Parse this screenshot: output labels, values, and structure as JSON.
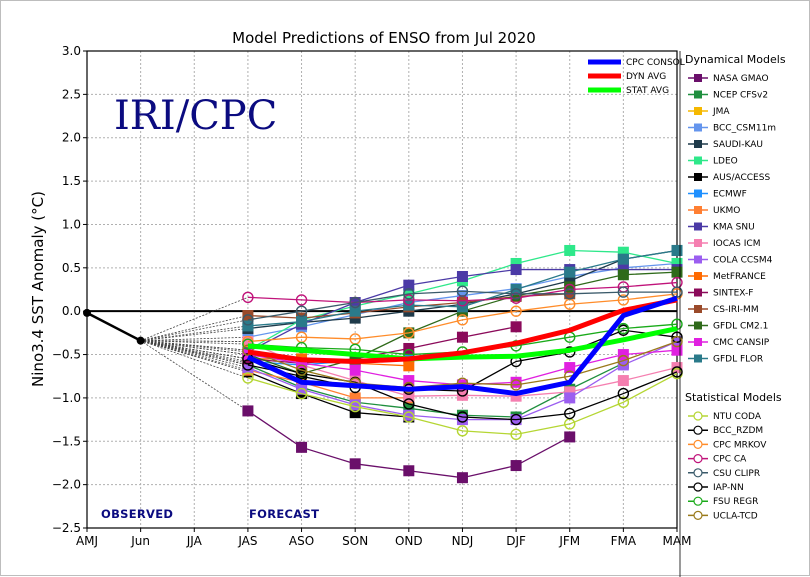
{
  "chart_data": {
    "type": "line",
    "title": "Model Predictions of ENSO from Jul 2020",
    "xlabel": "",
    "ylabel": "Nino3.4 SST Anomaly (°C)",
    "ylim": [
      -2.5,
      3.0
    ],
    "yticks": [
      "3.0",
      "2.5",
      "2.0",
      "1.5",
      "1.0",
      "0.5",
      "0.0",
      "−0.5",
      "−1.0",
      "−1.5",
      "−2.0",
      "−2.5"
    ],
    "ytick_values": [
      3.0,
      2.5,
      2.0,
      1.5,
      1.0,
      0.5,
      0.0,
      -0.5,
      -1.0,
      -1.5,
      -2.0,
      -2.5
    ],
    "categories": [
      "AMJ",
      "Jun",
      "JJA",
      "JAS",
      "ASO",
      "SON",
      "OND",
      "NDJ",
      "DJF",
      "JFM",
      "FMA",
      "MAM"
    ],
    "grid": true,
    "watermark": "IRI/CPC",
    "annotations": {
      "observed": "OBSERVED",
      "forecast": "FORECAST"
    },
    "observed": {
      "name": "Observed",
      "color": "#000000",
      "start_index": 0,
      "values": [
        -0.02,
        -0.34
      ]
    },
    "forecast_start_index": 3,
    "consensus": [
      {
        "name": "CPC CONSOL",
        "color": "#0000ff",
        "values": [
          -0.53,
          -0.82,
          -0.86,
          -0.9,
          -0.87,
          -0.95,
          -0.82,
          -0.05,
          0.15
        ]
      },
      {
        "name": "DYN AVG",
        "color": "#ff0000",
        "values": [
          -0.47,
          -0.56,
          -0.58,
          -0.55,
          -0.48,
          -0.37,
          -0.22,
          0.01,
          0.13
        ]
      },
      {
        "name": "STAT AVG",
        "color": "#00ff00",
        "values": [
          -0.4,
          -0.45,
          -0.5,
          -0.55,
          -0.53,
          -0.52,
          -0.45,
          -0.33,
          -0.2
        ]
      }
    ],
    "legend": {
      "consensus_placement": "top-right",
      "dynamical_title": "Dynamical Models",
      "statistical_title": "Statistical Models",
      "placement": "right"
    },
    "dynamical_models": [
      {
        "name": "NASA GMAO",
        "color": "#6a0f6a",
        "values": [
          -1.15,
          -1.57,
          -1.76,
          -1.84,
          -1.92,
          -1.78,
          -1.45,
          null,
          null
        ]
      },
      {
        "name": "NCEP CFSv2",
        "color": "#1f8f3f",
        "values": [
          -0.62,
          -0.88,
          -1.05,
          -1.12,
          -1.2,
          -1.22,
          -0.9,
          -0.6,
          null
        ]
      },
      {
        "name": "JMA",
        "color": "#f5b800",
        "values": [
          -0.6,
          null,
          null,
          null,
          null,
          null,
          null,
          null,
          null
        ]
      },
      {
        "name": "BCC_CSM11m",
        "color": "#6495ed",
        "values": [
          -0.3,
          -0.18,
          -0.04,
          0.1,
          0.18,
          0.26,
          0.4,
          0.5,
          0.55
        ]
      },
      {
        "name": "SAUDI-KAU",
        "color": "#1e3a4a",
        "values": [
          -0.2,
          -0.13,
          -0.08,
          0.0,
          0.08,
          0.2,
          0.35,
          0.6,
          0.7
        ]
      },
      {
        "name": "LDEO",
        "color": "#2ee88a",
        "values": [
          -0.45,
          -0.1,
          0.06,
          0.2,
          0.35,
          0.55,
          0.7,
          0.68,
          0.55
        ]
      },
      {
        "name": "AUS/ACCESS",
        "color": "#000000",
        "values": [
          -0.7,
          -0.95,
          -1.17,
          -1.22,
          null,
          null,
          null,
          null,
          null
        ]
      },
      {
        "name": "ECMWF",
        "color": "#1e90ff",
        "values": [
          -0.58,
          -0.62,
          -0.57,
          -0.53,
          null,
          null,
          null,
          null,
          null
        ]
      },
      {
        "name": "UKMO",
        "color": "#ff7f32",
        "values": [
          -0.68,
          -0.82,
          -1.0,
          -1.0,
          null,
          null,
          null,
          null,
          null
        ]
      },
      {
        "name": "KMA SNU",
        "color": "#4b3aa6",
        "values": [
          -0.47,
          -0.15,
          0.1,
          0.3,
          0.4,
          0.48,
          0.48,
          0.48,
          0.48
        ]
      },
      {
        "name": "IOCAS ICM",
        "color": "#f57fb0",
        "values": [
          -0.35,
          -0.62,
          -0.8,
          -0.98,
          -0.97,
          -0.98,
          -0.93,
          -0.8,
          -0.65
        ]
      },
      {
        "name": "COLA CCSM4",
        "color": "#9b5ef0",
        "values": [
          -0.65,
          -0.9,
          -1.08,
          -1.2,
          -1.25,
          -1.25,
          -1.0,
          -0.62,
          -0.35
        ]
      },
      {
        "name": "MetFRANCE",
        "color": "#ff6a00",
        "values": [
          -0.55,
          -0.55,
          -0.6,
          -0.63,
          null,
          null,
          null,
          null,
          null
        ]
      },
      {
        "name": "SINTEX-F",
        "color": "#8b0a5a",
        "values": [
          -0.55,
          -0.6,
          -0.55,
          -0.43,
          -0.3,
          -0.18,
          null,
          null,
          null
        ]
      },
      {
        "name": "CS-IRI-MM",
        "color": "#9a4a2a",
        "values": [
          -0.05,
          -0.08,
          -0.02,
          0.05,
          0.1,
          0.17,
          0.2,
          null,
          null
        ]
      },
      {
        "name": "GFDL CM2.1",
        "color": "#2f6a1a",
        "values": [
          -0.5,
          -0.72,
          -0.55,
          -0.25,
          0.0,
          0.18,
          0.28,
          0.42,
          0.45
        ]
      },
      {
        "name": "CMC CANSIP",
        "color": "#e020e0",
        "values": [
          -0.5,
          -0.6,
          -0.68,
          -0.8,
          -0.85,
          -0.82,
          -0.65,
          -0.5,
          -0.45
        ]
      },
      {
        "name": "GFDL FLOR",
        "color": "#2a7a8a",
        "values": [
          -0.17,
          -0.12,
          -0.0,
          0.07,
          0.05,
          0.25,
          0.45,
          0.6,
          0.7
        ]
      }
    ],
    "statistical_models": [
      {
        "name": "NTU CODA",
        "color": "#b5d633",
        "values": [
          -0.77,
          -0.95,
          -1.1,
          -1.22,
          -1.38,
          -1.42,
          -1.3,
          -1.05,
          -0.72
        ]
      },
      {
        "name": "BCC_RZDM",
        "color": "#000000",
        "values": [
          -0.55,
          -0.72,
          -0.82,
          -1.07,
          -1.22,
          -1.25,
          -1.18,
          -0.95,
          -0.7
        ]
      },
      {
        "name": "CPC MRKOV",
        "color": "#ff8c2a",
        "values": [
          -0.35,
          -0.3,
          -0.32,
          -0.25,
          -0.1,
          0.0,
          0.08,
          0.13,
          0.2
        ]
      },
      {
        "name": "CPC CA",
        "color": "#c0137a",
        "values": [
          0.16,
          0.13,
          0.1,
          0.13,
          0.12,
          0.15,
          0.25,
          0.28,
          0.33
        ]
      },
      {
        "name": "CSU CLIPR",
        "color": "#3a5a6a",
        "values": [
          -0.1,
          0.0,
          0.1,
          0.2,
          0.23,
          0.2,
          0.2,
          0.22,
          0.22
        ]
      },
      {
        "name": "IAP-NN",
        "color": "#000000",
        "values": [
          -0.62,
          -0.75,
          -0.88,
          -0.9,
          -0.92,
          -0.58,
          -0.47,
          -0.22,
          -0.3
        ]
      },
      {
        "name": "FSU REGR",
        "color": "#1aaa1a",
        "values": [
          -0.38,
          -0.42,
          -0.44,
          -0.5,
          -0.47,
          -0.4,
          -0.3,
          -0.2,
          -0.15
        ]
      },
      {
        "name": "UCLA-TCD",
        "color": "#9a7a1a",
        "values": [
          -0.45,
          -0.68,
          -0.83,
          -0.88,
          -0.83,
          -0.85,
          -0.75,
          -0.57,
          -0.35
        ]
      }
    ]
  }
}
